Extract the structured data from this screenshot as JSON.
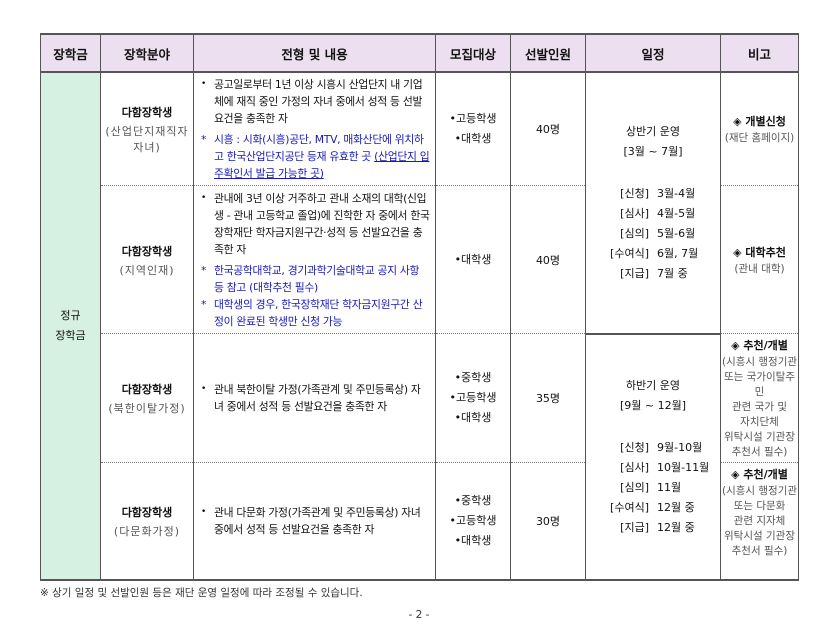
{
  "headers": [
    "장학금",
    "장학분야",
    "전형 및 내용",
    "모집대상",
    "선발인원",
    "일정",
    "비고"
  ],
  "category": [
    "정규",
    "장학금"
  ],
  "rows": [
    {
      "name": "다함장학생",
      "sub": [
        "(산업단지재직자",
        "자녀)"
      ],
      "content": [
        "공고일로부터 1년 이상 시흥시 산업단지 내 기업체에 재직 중인 가정의 자녀 중에서 성적 등 선발요건을 충족한 자"
      ],
      "notes": [
        {
          "text": "시흥 : 시화(시흥)공단, MTV, 매화산단에 위치하고 한국산업단지공단 등재 유효한 곳 ",
          "underlined": "(산업단지 입주확인서 발급 가능한 곳)"
        }
      ],
      "targets": [
        "•고등학생",
        "•대학생"
      ],
      "count": "40명",
      "remark_head": "◈ 개별신청",
      "remark": [
        "(재단 홈페이지)"
      ]
    },
    {
      "name": "다함장학생",
      "sub": [
        "(지역인재)"
      ],
      "content": [
        "관내에 3년 이상 거주하고 관내 소재의 대학(신입생 - 관내 고등학교 졸업)에 진학한 자 중에서 한국장학재단 학자금지원구간·성적 등 선발요건을 충족한 자"
      ],
      "notes": [
        {
          "text": "한국공학대학교, 경기과학기술대학교 공지 사항 등 참고 (대학추천 필수)"
        },
        {
          "text": "대학생의 경우, 한국장학재단 학자금지원구간 산정이 완료된 학생만 신청 가능"
        }
      ],
      "targets": [
        "•대학생"
      ],
      "count": "40명",
      "remark_head": "◈ 대학추천",
      "remark": [
        "(관내 대학)"
      ]
    },
    {
      "name": "다함장학생",
      "sub": [
        "(북한이탈가정)"
      ],
      "content": [
        "관내 북한이탈 가정(가족관계 및 주민등록상) 자녀 중에서 성적 등 선발요건을 충족한 자"
      ],
      "notes": [],
      "targets": [
        "•중학생",
        "•고등학생",
        "•대학생"
      ],
      "count": "35명",
      "remark_head": "◈ 추천/개별",
      "remark": [
        "(시흥시 행정기관",
        "또는 국가이탈주민",
        "관련 국가 및",
        "자치단체",
        "위탁시설 기관장",
        "추천서 필수)"
      ]
    },
    {
      "name": "다함장학생",
      "sub": [
        "(다문화가정)"
      ],
      "content": [
        "관내 다문화 가정(가족관계 및 주민등록상) 자녀 중에서 성적 등 선발요건을 충족한 자"
      ],
      "notes": [],
      "targets": [
        "•중학생",
        "•고등학생",
        "•대학생"
      ],
      "count": "30명",
      "remark_head": "◈ 추천/개별",
      "remark": [
        "(시흥시 행정기관",
        "또는 다문화",
        "관련 지자체",
        "위탁시설 기관장",
        "추천서 필수)"
      ]
    }
  ],
  "schedules": [
    {
      "period": [
        "상반기 운영",
        "[3월 ~ 7월]"
      ],
      "steps": [
        [
          "[신청]",
          "3월-4월"
        ],
        [
          "[심사]",
          "4월-5월"
        ],
        [
          "[심의]",
          "5월-6월"
        ],
        [
          "[수여식]",
          "6월, 7월"
        ],
        [
          "[지급]",
          "7월 중"
        ]
      ]
    },
    {
      "period": [
        "하반기 운영",
        "[9월 ~ 12월]"
      ],
      "steps": [
        [
          "[신청]",
          "9월-10월"
        ],
        [
          "[심사]",
          "10월-11월"
        ],
        [
          "[심의]",
          "11월"
        ],
        [
          "[수여식]",
          "12월 중"
        ],
        [
          "[지급]",
          "12월 중"
        ]
      ]
    }
  ],
  "footnote": "※ 상기 일정 및 선발인원 등은 재단 운영 일정에 따라 조정될 수 있습니다.",
  "page_number": "- 2 -",
  "colors": {
    "header_bg": "#ecdff0",
    "category_bg": "#d6f1e2",
    "note_text": "#1a1ab8"
  }
}
